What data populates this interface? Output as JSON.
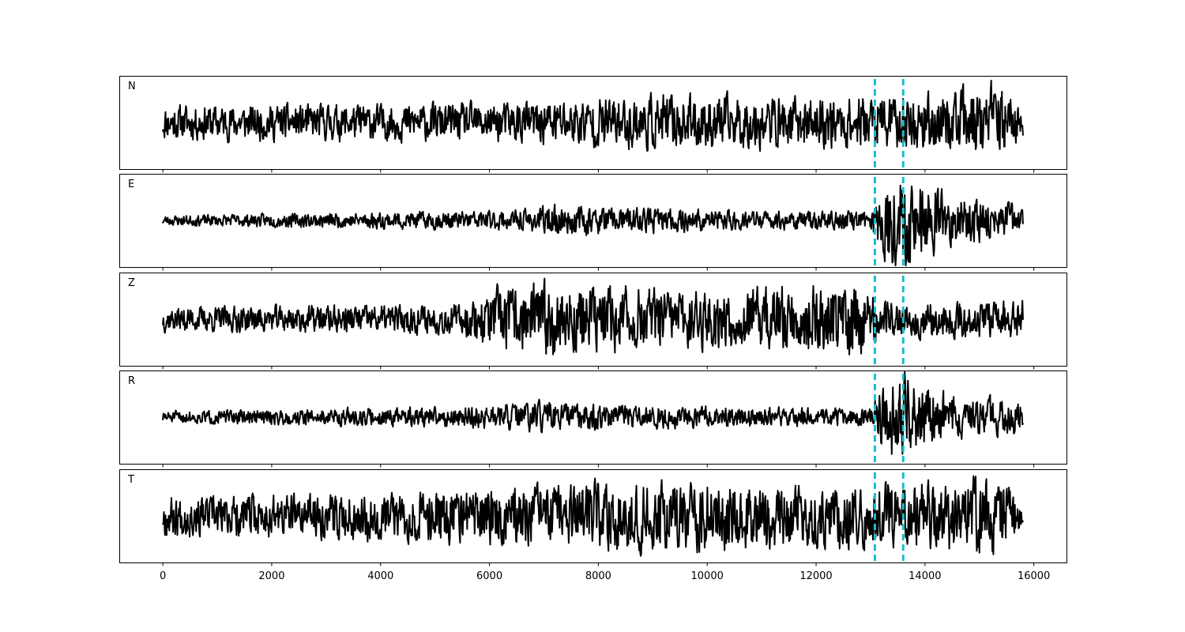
{
  "chart_data": {
    "type": "line",
    "title": "",
    "xlabel": "",
    "ylabel": "",
    "xlim": [
      -800,
      16600
    ],
    "x_ticks": [
      0,
      2000,
      4000,
      6000,
      8000,
      10000,
      12000,
      14000,
      16000
    ],
    "x_tick_labels": [
      "0",
      "2000",
      "4000",
      "6000",
      "8000",
      "10000",
      "12000",
      "14000",
      "16000"
    ],
    "x_range": [
      0,
      15800
    ],
    "grid": false,
    "legend": "none",
    "colors": {
      "trace": "#000000",
      "pick": "#17becf"
    },
    "picks": [
      13080,
      13600
    ],
    "panels": [
      {
        "label": "N",
        "seed": 11,
        "envelope": [
          [
            0,
            0.35
          ],
          [
            6000,
            0.38
          ],
          [
            7000,
            0.45
          ],
          [
            9000,
            0.55
          ],
          [
            12000,
            0.5
          ],
          [
            13000,
            0.55
          ],
          [
            13500,
            0.55
          ],
          [
            14500,
            0.6
          ],
          [
            15300,
            0.75
          ],
          [
            15800,
            0.3
          ]
        ]
      },
      {
        "label": "E",
        "seed": 23,
        "envelope": [
          [
            0,
            0.1
          ],
          [
            3000,
            0.15
          ],
          [
            6500,
            0.2
          ],
          [
            7200,
            0.3
          ],
          [
            8500,
            0.25
          ],
          [
            12000,
            0.18
          ],
          [
            13000,
            0.2
          ],
          [
            13300,
            0.95
          ],
          [
            13600,
            0.95
          ],
          [
            14500,
            0.5
          ],
          [
            15800,
            0.3
          ]
        ]
      },
      {
        "label": "Z",
        "seed": 37,
        "envelope": [
          [
            0,
            0.25
          ],
          [
            5500,
            0.3
          ],
          [
            6000,
            0.6
          ],
          [
            7300,
            0.75
          ],
          [
            9500,
            0.55
          ],
          [
            12800,
            0.75
          ],
          [
            13200,
            0.35
          ],
          [
            15800,
            0.4
          ]
        ]
      },
      {
        "label": "R",
        "seed": 51,
        "envelope": [
          [
            0,
            0.12
          ],
          [
            5000,
            0.2
          ],
          [
            7000,
            0.3
          ],
          [
            9000,
            0.22
          ],
          [
            12500,
            0.18
          ],
          [
            13000,
            0.2
          ],
          [
            13400,
            0.85
          ],
          [
            13700,
            0.85
          ],
          [
            14500,
            0.45
          ],
          [
            15800,
            0.35
          ]
        ]
      },
      {
        "label": "T",
        "seed": 67,
        "envelope": [
          [
            0,
            0.4
          ],
          [
            3000,
            0.45
          ],
          [
            7000,
            0.6
          ],
          [
            9800,
            0.7
          ],
          [
            12000,
            0.6
          ],
          [
            13500,
            0.65
          ],
          [
            14600,
            0.75
          ],
          [
            15400,
            0.8
          ],
          [
            15800,
            0.2
          ]
        ]
      }
    ]
  }
}
